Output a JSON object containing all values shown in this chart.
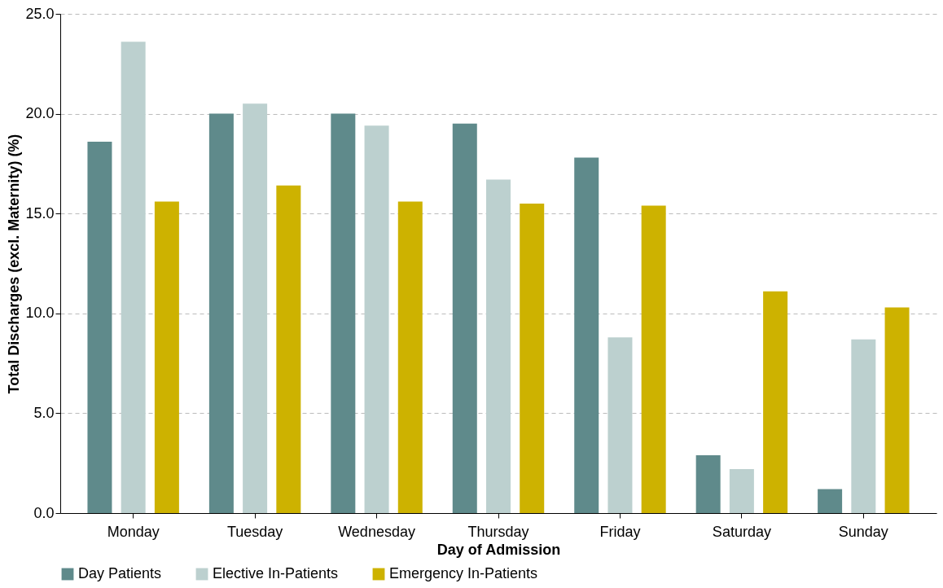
{
  "chart_data": {
    "type": "bar",
    "xlabel": "Day of Admission",
    "ylabel": "Total Discharges  (excl. Maternity)  (%)",
    "categories": [
      "Monday",
      "Tuesday",
      "Wednesday",
      "Thursday",
      "Friday",
      "Saturday",
      "Sunday"
    ],
    "series": [
      {
        "name": "Day Patients",
        "color": "#5f8a8b",
        "values": [
          18.6,
          20.0,
          20.0,
          19.5,
          17.8,
          2.9,
          1.2
        ]
      },
      {
        "name": "Elective In-Patients",
        "color": "#bcd0cf",
        "values": [
          23.6,
          20.5,
          19.4,
          16.7,
          8.8,
          2.2,
          8.7
        ]
      },
      {
        "name": "Emergency In-Patients",
        "color": "#cdb200",
        "values": [
          15.6,
          16.4,
          15.6,
          15.5,
          15.4,
          11.1,
          10.3
        ]
      }
    ],
    "ylim": [
      0,
      25
    ],
    "yticks": [
      {
        "value": 0,
        "label": "0.0"
      },
      {
        "value": 5,
        "label": "5.0"
      },
      {
        "value": 10,
        "label": "10.0"
      },
      {
        "value": 15,
        "label": "15.0"
      },
      {
        "value": 20,
        "label": "20.0"
      },
      {
        "value": 25,
        "label": "25.0"
      }
    ],
    "grid": "y",
    "legend": "bottom"
  }
}
